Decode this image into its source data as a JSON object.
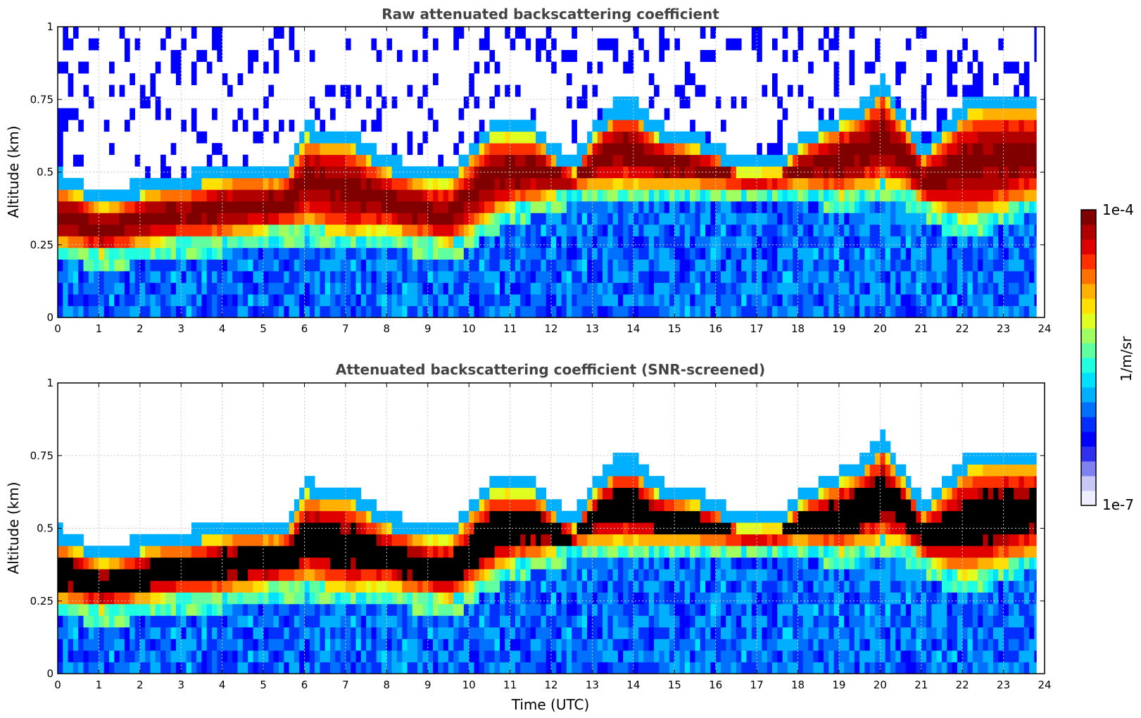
{
  "chart_data": [
    {
      "type": "heatmap",
      "id": "raw",
      "title": "Raw attenuated backscattering coefficient",
      "xlabel": "",
      "ylabel": "Altitude (km)",
      "xlim": [
        0,
        24
      ],
      "ylim": [
        0,
        1
      ],
      "xticks": [
        "0",
        "1",
        "2",
        "3",
        "4",
        "5",
        "6",
        "7",
        "8",
        "9",
        "10",
        "11",
        "12",
        "13",
        "14",
        "15",
        "16",
        "17",
        "18",
        "19",
        "20",
        "21",
        "22",
        "23",
        "24"
      ],
      "yticks": [
        "0",
        "0.25",
        "0.5",
        "0.75",
        "1"
      ],
      "grid": true,
      "screened": false,
      "layer": {
        "time": [
          0,
          0.5,
          1,
          1.5,
          2,
          2.5,
          3,
          3.5,
          4,
          4.5,
          5,
          5.5,
          6,
          6.5,
          7,
          7.5,
          8,
          8.5,
          9,
          9.5,
          10,
          10.5,
          11,
          11.5,
          12,
          12.5,
          13,
          13.5,
          14,
          14.5,
          15,
          15.5,
          16,
          16.5,
          17,
          17.5,
          18,
          18.5,
          19,
          19.5,
          20,
          20.5,
          21,
          21.5,
          22,
          22.5,
          23,
          23.5,
          23.8
        ],
        "base_km": [
          0.25,
          0.24,
          0.22,
          0.23,
          0.25,
          0.26,
          0.27,
          0.27,
          0.28,
          0.29,
          0.3,
          0.31,
          0.32,
          0.3,
          0.28,
          0.3,
          0.3,
          0.28,
          0.27,
          0.25,
          0.3,
          0.35,
          0.38,
          0.4,
          0.42,
          0.45,
          0.45,
          0.45,
          0.45,
          0.45,
          0.45,
          0.45,
          0.45,
          0.45,
          0.45,
          0.45,
          0.45,
          0.44,
          0.42,
          0.44,
          0.46,
          0.45,
          0.4,
          0.36,
          0.33,
          0.35,
          0.38,
          0.4,
          0.4
        ],
        "top_km": [
          0.45,
          0.42,
          0.38,
          0.4,
          0.42,
          0.44,
          0.44,
          0.46,
          0.47,
          0.48,
          0.47,
          0.48,
          0.62,
          0.6,
          0.6,
          0.55,
          0.5,
          0.48,
          0.46,
          0.46,
          0.55,
          0.62,
          0.62,
          0.62,
          0.55,
          0.5,
          0.62,
          0.7,
          0.7,
          0.62,
          0.6,
          0.58,
          0.55,
          0.5,
          0.5,
          0.5,
          0.58,
          0.62,
          0.66,
          0.7,
          0.78,
          0.66,
          0.55,
          0.62,
          0.7,
          0.72,
          0.72,
          0.72,
          0.72
        ]
      }
    },
    {
      "type": "heatmap",
      "id": "screened",
      "title": "Attenuated backscattering coefficient (SNR-screened)",
      "xlabel": "Time (UTC)",
      "ylabel": "Altitude (km)",
      "xlim": [
        0,
        24
      ],
      "ylim": [
        0,
        1
      ],
      "xticks": [
        "0",
        "1",
        "2",
        "3",
        "4",
        "5",
        "6",
        "7",
        "8",
        "9",
        "10",
        "11",
        "12",
        "13",
        "14",
        "15",
        "16",
        "17",
        "18",
        "19",
        "20",
        "21",
        "22",
        "23",
        "24"
      ],
      "yticks": [
        "0",
        "0.25",
        "0.5",
        "0.75",
        "1"
      ],
      "grid": true,
      "screened": true,
      "layer": {
        "time": [
          0,
          0.5,
          1,
          1.5,
          2,
          2.5,
          3,
          3.5,
          4,
          4.5,
          5,
          5.5,
          6,
          6.5,
          7,
          7.5,
          8,
          8.5,
          9,
          9.5,
          10,
          10.5,
          11,
          11.5,
          12,
          12.5,
          13,
          13.5,
          14,
          14.5,
          15,
          15.5,
          16,
          16.5,
          17,
          17.5,
          18,
          18.5,
          19,
          19.5,
          20,
          20.5,
          21,
          21.5,
          22,
          22.5,
          23,
          23.5,
          23.8
        ],
        "base_km": [
          0.25,
          0.24,
          0.22,
          0.23,
          0.25,
          0.26,
          0.27,
          0.27,
          0.28,
          0.29,
          0.3,
          0.31,
          0.32,
          0.3,
          0.28,
          0.3,
          0.3,
          0.28,
          0.27,
          0.25,
          0.3,
          0.35,
          0.38,
          0.4,
          0.42,
          0.45,
          0.45,
          0.45,
          0.45,
          0.45,
          0.45,
          0.45,
          0.45,
          0.45,
          0.45,
          0.45,
          0.45,
          0.44,
          0.42,
          0.44,
          0.46,
          0.45,
          0.4,
          0.36,
          0.33,
          0.35,
          0.38,
          0.4,
          0.4
        ],
        "top_km": [
          0.45,
          0.42,
          0.38,
          0.4,
          0.42,
          0.44,
          0.44,
          0.46,
          0.47,
          0.48,
          0.47,
          0.48,
          0.62,
          0.6,
          0.6,
          0.55,
          0.5,
          0.48,
          0.46,
          0.46,
          0.55,
          0.62,
          0.62,
          0.62,
          0.55,
          0.5,
          0.62,
          0.7,
          0.7,
          0.62,
          0.6,
          0.58,
          0.55,
          0.5,
          0.5,
          0.5,
          0.58,
          0.62,
          0.66,
          0.7,
          0.78,
          0.66,
          0.55,
          0.62,
          0.7,
          0.72,
          0.72,
          0.72,
          0.72
        ]
      }
    }
  ],
  "colorbar": {
    "label": "1/m/sr",
    "max_label": "1e-4",
    "min_label": "1e-7",
    "colors": [
      "#eeeeff",
      "#c8c8f5",
      "#8080f0",
      "#3030f0",
      "#0000ff",
      "#0030ff",
      "#0070ff",
      "#00b0ff",
      "#00e0ff",
      "#20ffe0",
      "#60ffa0",
      "#a0ff60",
      "#e0ff20",
      "#ffe000",
      "#ffb000",
      "#ff7000",
      "#ff3000",
      "#e00000",
      "#b00000",
      "#800000"
    ]
  }
}
